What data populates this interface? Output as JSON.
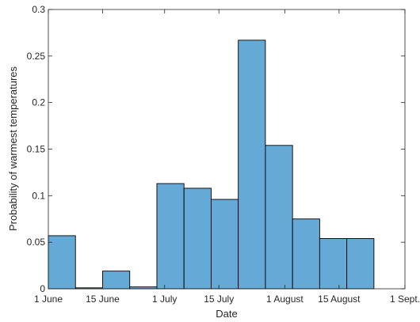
{
  "chart_data": {
    "type": "bar",
    "subtype": "histogram",
    "xlabel": "Date",
    "ylabel": "Probability of warmest temperatures",
    "ylim": [
      0,
      0.3
    ],
    "yticks": [
      "0",
      "0.05",
      "0.1",
      "0.15",
      "0.2",
      "0.25",
      "0.3"
    ],
    "xlim": [
      "1 June",
      "1 Sept."
    ],
    "xticks": [
      "1 June",
      "15 June",
      "1 July",
      "15 July",
      "1 August",
      "15 August",
      "1 Sept."
    ],
    "bin_width_days": 7,
    "bins": [
      {
        "start": "2000-06-01",
        "end": "2000-06-08",
        "value": 0.057
      },
      {
        "start": "2000-06-08",
        "end": "2000-06-15",
        "value": 0.001
      },
      {
        "start": "2000-06-15",
        "end": "2000-06-22",
        "value": 0.019
      },
      {
        "start": "2000-06-22",
        "end": "2000-06-29",
        "value": 0.002
      },
      {
        "start": "2000-06-29",
        "end": "2000-07-06",
        "value": 0.113
      },
      {
        "start": "2000-07-06",
        "end": "2000-07-13",
        "value": 0.108
      },
      {
        "start": "2000-07-13",
        "end": "2000-07-20",
        "value": 0.096
      },
      {
        "start": "2000-07-20",
        "end": "2000-07-27",
        "value": 0.267
      },
      {
        "start": "2000-07-27",
        "end": "2000-08-03",
        "value": 0.154
      },
      {
        "start": "2000-08-03",
        "end": "2000-08-10",
        "value": 0.075
      },
      {
        "start": "2000-08-10",
        "end": "2000-08-17",
        "value": 0.054
      },
      {
        "start": "2000-08-17",
        "end": "2000-08-24",
        "value": 0.054
      }
    ],
    "grid": false,
    "box": true,
    "colors": {
      "bar_fill": "#65a9d7",
      "bar_edge": "#000000",
      "axis": "#262626"
    }
  }
}
